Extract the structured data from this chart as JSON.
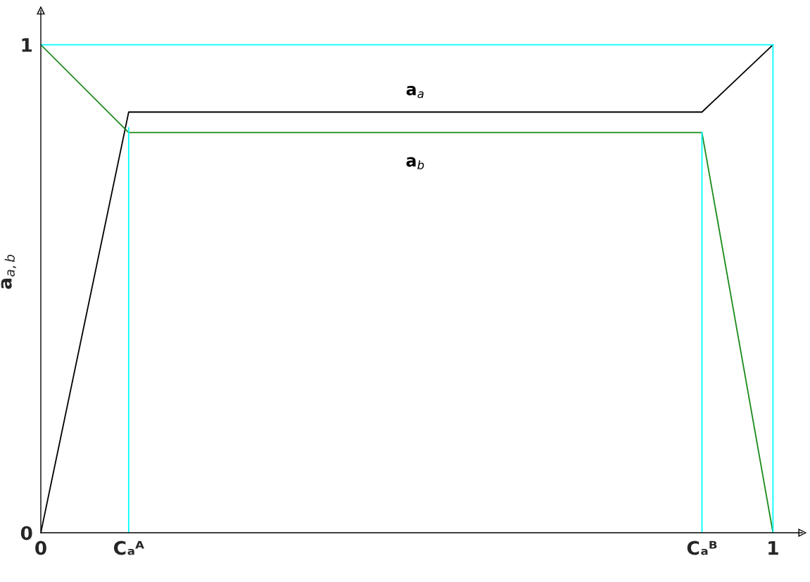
{
  "chart_data": {
    "type": "line",
    "ylabel": "a$_{a,b}$",
    "xlim": [
      0,
      1.04
    ],
    "ylim": [
      0,
      1.07
    ],
    "xticks": [
      0,
      {
        "value": 0.12,
        "label": "Cₐᴬ"
      },
      {
        "value": 0.903,
        "label": "Cₐᴮ"
      },
      1
    ],
    "yticks": [
      0,
      1
    ],
    "grid": false,
    "legend": false,
    "marker": "none",
    "line_style": "solid",
    "series": [
      {
        "name": "a$_{a}$",
        "color": "#000000",
        "x": [
          0,
          0.12,
          0.903,
          1
        ],
        "values": [
          0,
          0.862,
          0.862,
          1
        ]
      },
      {
        "name": "a$_{b}$",
        "color": "#1a8a1a",
        "x": [
          0,
          0.12,
          0.903,
          1
        ],
        "values": [
          1,
          0.82,
          0.82,
          0
        ]
      },
      {
        "color": "#00ffff",
        "x": [
          0.12,
          0.12
        ],
        "values": [
          0,
          0.83
        ]
      },
      {
        "color": "#00ffff",
        "x": [
          0.903,
          0.903
        ],
        "values": [
          0,
          0.82
        ]
      },
      {
        "color": "#00ffff",
        "x": [
          1,
          1
        ],
        "values": [
          0,
          1
        ]
      },
      {
        "color": "#00ffff",
        "x": [
          0,
          1
        ],
        "values": [
          1,
          1
        ]
      }
    ]
  }
}
